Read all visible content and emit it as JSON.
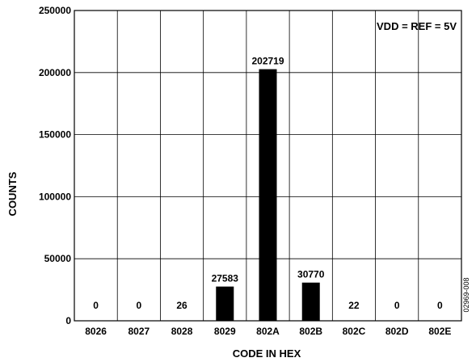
{
  "chart_data": {
    "type": "bar",
    "categories": [
      "8026",
      "8027",
      "8028",
      "8029",
      "802A",
      "802B",
      "802C",
      "802D",
      "802E"
    ],
    "values": [
      0,
      0,
      26,
      27583,
      202719,
      30770,
      22,
      0,
      0
    ],
    "data_labels": [
      "0",
      "0",
      "26",
      "27583",
      "202719",
      "30770",
      "22",
      "0",
      "0"
    ],
    "xlabel": "CODE IN HEX",
    "ylabel": "COUNTS",
    "ylim": [
      0,
      250000
    ],
    "yticks": [
      0,
      50000,
      100000,
      150000,
      200000,
      250000
    ],
    "ytick_labels": [
      "0",
      "50000",
      "100000",
      "150000",
      "200000",
      "250000"
    ],
    "annotation": "VDD = REF = 5V",
    "figure_id": "02969-008",
    "grid": true,
    "bar_color": "#000000"
  }
}
